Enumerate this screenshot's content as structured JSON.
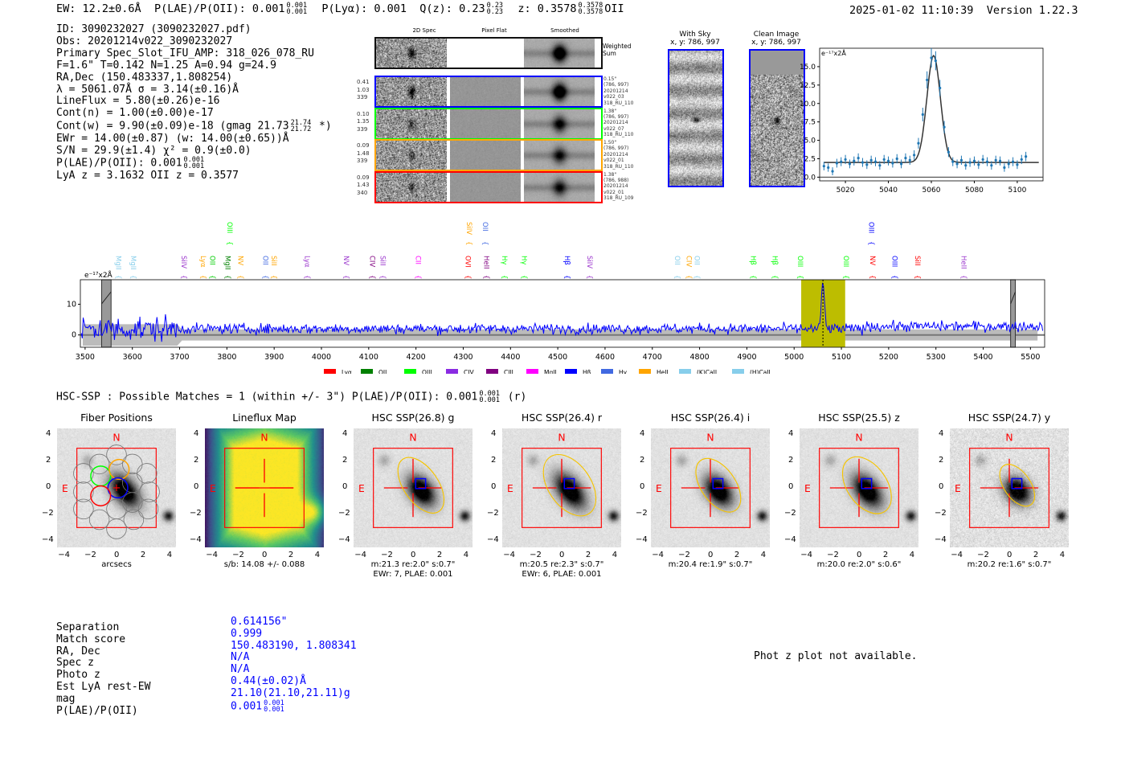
{
  "header": {
    "ew": "EW: 12.2±0.6Å",
    "plae": "P(LAE)/P(OII): 0.001",
    "plae_hi": "0.001",
    "plae_lo": "0.001",
    "plya": "P(Lyα): 0.001",
    "qz": "Q(z): 0.23",
    "qz_hi": "0.23",
    "qz_lo": "0.23",
    "z": "z: 0.3578",
    "z_hi": "0.3578",
    "z_lo": "0.3578",
    "z_type": "OII",
    "timestamp": "2025-01-02 11:10:39",
    "version": "Version 1.22.3"
  },
  "info": [
    {
      "text": "ID: 3090232027 (3090232027.pdf)"
    },
    {
      "text": "Obs: 20201214v022_3090232027"
    },
    {
      "text": "Primary Spec_Slot_IFU_AMP: 318_026_078_RU"
    },
    {
      "text": "F=1.6\"  T=0.142  N=1.25  A=0.94  g=24.9"
    },
    {
      "text": "RA,Dec (150.483337,1.808254)"
    },
    {
      "text": "λ = 5061.07Å  σ = 3.14(±0.16)Å"
    },
    {
      "text": "LineFlux = 5.80(±0.26)e-16"
    },
    {
      "text": "Cont(n) = 1.00(±0.00)e-17"
    },
    {
      "text": "Cont(w) = 9.90(±0.09)e-18 (gmag 21.73",
      "hi": "21.74",
      "lo": "21.72",
      "suffix": " *)"
    },
    {
      "text": "EWr = 14.00(±0.87) (w: 14.00(±0.65))Å"
    },
    {
      "text": "S/N = 29.9(±1.4)  χ² = 0.9(±0.0)"
    },
    {
      "text": "P(LAE)/P(OII): 0.001",
      "hi": "0.001",
      "lo": "0.001"
    },
    {
      "text": "LyA z = 3.1632  OII z = 0.3577"
    }
  ],
  "spec2d": {
    "col_titles": [
      "2D Spec",
      "Pixel Flat",
      "Smoothed"
    ],
    "weighted_label": "Weighted Sum",
    "rows": [
      {
        "color": "#0000ff",
        "vals": [
          "0.41",
          "1.03",
          "339"
        ],
        "meta": [
          "0.15\"",
          "(786, 997)",
          "20201214",
          "v022_03",
          "318_RU_110"
        ]
      },
      {
        "color": "#00ff00",
        "vals": [
          "0.10",
          "1.35",
          "339"
        ],
        "meta": [
          "1.38\"",
          "(786, 997)",
          "20201214",
          "v022_07",
          "318_RU_110"
        ]
      },
      {
        "color": "#ffa500",
        "vals": [
          "0.09",
          "1.48",
          "339"
        ],
        "meta": [
          "1.50\"",
          "(786, 997)",
          "20201214",
          "v022_01",
          "318_RU_110"
        ]
      },
      {
        "color": "#ff0000",
        "vals": [
          "0.09",
          "1.43",
          "340"
        ],
        "meta": [
          "1.38\"",
          "(786, 988)",
          "20201214",
          "v022_01",
          "318_RU_109"
        ]
      }
    ]
  },
  "sky": {
    "title": "With Sky",
    "coords": "x, y: 786, 997"
  },
  "clean": {
    "title": "Clean Image",
    "coords": "x, y: 786, 997"
  },
  "chart_data": [
    {
      "type": "scatter",
      "name": "line-fit",
      "ylabel": "e⁻¹⁷x2Å",
      "xlim": [
        5008,
        5112
      ],
      "ylim": [
        -0.5,
        17.5
      ],
      "xticks": [
        5020,
        5040,
        5060,
        5080,
        5100
      ],
      "yticks": [
        "0.0",
        "2.5",
        "5.0",
        "7.5",
        "10.0",
        "12.5",
        "15.0"
      ],
      "fit": {
        "center": 5061.07,
        "sigma": 3.14,
        "continuum": 2.0,
        "peak": 16.5
      },
      "x": [
        5010,
        5012,
        5014,
        5016,
        5018,
        5020,
        5022,
        5024,
        5026,
        5028,
        5030,
        5032,
        5034,
        5036,
        5038,
        5040,
        5042,
        5044,
        5046,
        5048,
        5050,
        5052,
        5054,
        5056,
        5058,
        5060,
        5062,
        5064,
        5066,
        5068,
        5070,
        5072,
        5074,
        5076,
        5078,
        5080,
        5082,
        5084,
        5086,
        5088,
        5090,
        5092,
        5094,
        5096,
        5098,
        5100,
        5102,
        5104
      ],
      "y": [
        1.5,
        1.3,
        0.8,
        1.9,
        2.1,
        2.4,
        1.8,
        2.2,
        2.6,
        2.0,
        1.7,
        2.3,
        2.1,
        1.6,
        2.4,
        2.2,
        1.9,
        2.5,
        1.8,
        2.6,
        2.3,
        3.0,
        4.6,
        8.5,
        13.2,
        16.2,
        15.8,
        12.1,
        6.8,
        3.4,
        2.1,
        1.8,
        2.3,
        1.6,
        2.0,
        2.2,
        1.7,
        2.4,
        2.1,
        1.6,
        2.3,
        2.2,
        1.3,
        1.8,
        2.1,
        1.7,
        2.4,
        2.8
      ]
    },
    {
      "type": "line",
      "name": "full-spectrum",
      "ylabel": "e⁻¹⁷x2Å",
      "xlim": [
        3490,
        5530
      ],
      "ylim": [
        -4,
        18
      ],
      "xticks": [
        3500,
        3600,
        3700,
        3800,
        3900,
        4000,
        4100,
        4200,
        4300,
        4400,
        4500,
        4600,
        4700,
        4800,
        4900,
        5000,
        5100,
        5200,
        5300,
        5400,
        5500
      ],
      "yticks": [
        "0",
        "10"
      ],
      "continuum": 2.0,
      "emission_line": {
        "center": 5061,
        "peak": 15
      },
      "highlight_range": [
        5015,
        5108
      ],
      "masked": [
        [
          3535,
          3555
        ],
        [
          5458,
          5468
        ]
      ]
    }
  ],
  "line_labels": [
    {
      "t": "MgII",
      "w": 3571,
      "c": "#87ceeb"
    },
    {
      "t": "MgII",
      "w": 3602,
      "c": "#87ceeb"
    },
    {
      "t": "SiIV",
      "w": 3709,
      "c": "#9932cc"
    },
    {
      "t": "Lyα",
      "w": 3750,
      "c": "#ffa500"
    },
    {
      "t": "OII",
      "w": 3770,
      "c": "#00cc00"
    },
    {
      "t": "MgII",
      "w": 3802,
      "c": "#008000"
    },
    {
      "t": "NV",
      "w": 3829,
      "c": "#ffa500"
    },
    {
      "t": "OII",
      "w": 3882,
      "c": "#4169e1"
    },
    {
      "t": "SiII",
      "w": 3900,
      "c": "#ffa500"
    },
    {
      "t": "Lyα",
      "w": 3970,
      "c": "#9932cc"
    },
    {
      "t": "NV",
      "w": 4053,
      "c": "#9932cc"
    },
    {
      "t": "CIV",
      "w": 4108,
      "c": "#800080"
    },
    {
      "t": "SiII",
      "w": 4130,
      "c": "#9932cc"
    },
    {
      "t": "CII",
      "w": 4205,
      "c": "#ff00ff"
    },
    {
      "t": "OVI",
      "w": 4310,
      "c": "#ff0000"
    },
    {
      "t": "HeII",
      "w": 4349,
      "c": "#800080"
    },
    {
      "t": "Hγ",
      "w": 4388,
      "c": "#00ff00"
    },
    {
      "t": "Hγ",
      "w": 4429,
      "c": "#00ff00"
    },
    {
      "t": "Hβ",
      "w": 4520,
      "c": "#0000ff"
    },
    {
      "t": "SiIV",
      "w": 4568,
      "c": "#9932cc"
    },
    {
      "t": "OII",
      "w": 4753,
      "c": "#87ceeb"
    },
    {
      "t": "CIV",
      "w": 4778,
      "c": "#ffa500"
    },
    {
      "t": "OII",
      "w": 4795,
      "c": "#87ceeb"
    },
    {
      "t": "Hβ",
      "w": 4914,
      "c": "#00ff00"
    },
    {
      "t": "Hβ",
      "w": 4960,
      "c": "#00ff00"
    },
    {
      "t": "OIII",
      "w": 5013,
      "c": "#00ff00"
    },
    {
      "t": "OIII",
      "w": 5110,
      "c": "#00ff00"
    },
    {
      "t": "NV",
      "w": 5166,
      "c": "#ff0000"
    },
    {
      "t": "OIII",
      "w": 5213,
      "c": "#0000ff"
    },
    {
      "t": "SiII",
      "w": 5261,
      "c": "#ff0000"
    },
    {
      "t": "HeII",
      "w": 5359,
      "c": "#9932cc"
    }
  ],
  "line_labels_top": [
    {
      "t": "OIII",
      "w": 3806,
      "c": "#00ff00"
    },
    {
      "t": "SiIV",
      "w": 4313,
      "c": "#ffa500"
    },
    {
      "t": "OII",
      "w": 4347,
      "c": "#4169e1"
    },
    {
      "t": "OIII",
      "w": 5164,
      "c": "#0000ff"
    }
  ],
  "legend": [
    {
      "t": "Lyα",
      "c": "#ff0000"
    },
    {
      "t": "OII",
      "c": "#008000"
    },
    {
      "t": "OIII",
      "c": "#00ff00"
    },
    {
      "t": "CIV",
      "c": "#8a2be2"
    },
    {
      "t": "CIII",
      "c": "#800080"
    },
    {
      "t": "MgII",
      "c": "#ff00ff"
    },
    {
      "t": "Hβ",
      "c": "#0000ff"
    },
    {
      "t": "Hγ",
      "c": "#4169e1"
    },
    {
      "t": "HeII",
      "c": "#ffa500"
    },
    {
      "t": "(K)CaII",
      "c": "#87ceeb"
    },
    {
      "t": "(H)CaII",
      "c": "#87ceeb"
    }
  ],
  "hsc": {
    "summary": "HSC-SSP : Possible Matches = 1 (within +/- 3\")  P(LAE)/P(OII): 0.001",
    "hi": "0.001",
    "lo": "0.001",
    "suffix": " (r)"
  },
  "cutouts": [
    {
      "title": "Fiber Positions",
      "cap1": "arcsecs",
      "cap2": "",
      "kind": "fiber"
    },
    {
      "title": "Lineflux Map",
      "cap1": "s/b: 14.08 +/- 0.088",
      "cap2": "",
      "kind": "flux"
    },
    {
      "title": "HSC SSP(26.8) g",
      "cap1": "m:21.3  re:2.0\"  s:0.7\"",
      "cap2": "EWr: 7, PLAE: 0.001",
      "kind": "img"
    },
    {
      "title": "HSC SSP(26.4) r",
      "cap1": "m:20.5  re:2.3\"  s:0.7\"",
      "cap2": "EWr: 6, PLAE: 0.001",
      "kind": "img"
    },
    {
      "title": "HSC SSP(26.4) i",
      "cap1": "m:20.4  re:1.9\"  s:0.7\"",
      "cap2": "",
      "kind": "img"
    },
    {
      "title": "HSC SSP(25.5) z",
      "cap1": "m:20.0  re:2.0\"  s:0.6\"",
      "cap2": "",
      "kind": "img"
    },
    {
      "title": "HSC SSP(24.7) y",
      "cap1": "m:20.2  re:1.6\"  s:0.7\"",
      "cap2": "",
      "kind": "img"
    }
  ],
  "compass": {
    "n": "N",
    "e": "E"
  },
  "axis_ticks": [
    "4",
    "2",
    "0",
    "−2",
    "−4"
  ],
  "axis_ticks_x": [
    "−4",
    "−2",
    "0",
    "2",
    "4"
  ],
  "match": {
    "labels": [
      "Separation",
      "Match score",
      "RA, Dec",
      "Spec z",
      "Photo z",
      "Est LyA rest-EW",
      "mag",
      "P(LAE)/P(OII)"
    ],
    "values": [
      "0.614156\"",
      "0.999",
      "150.483190, 1.808341",
      "N/A",
      "N/A",
      "0.44(±0.02)Å",
      "21.10(21.10,21.11)g",
      "0.001"
    ],
    "plae_hi": "0.001",
    "plae_lo": "0.001"
  },
  "photz_msg": "Phot z plot not available."
}
